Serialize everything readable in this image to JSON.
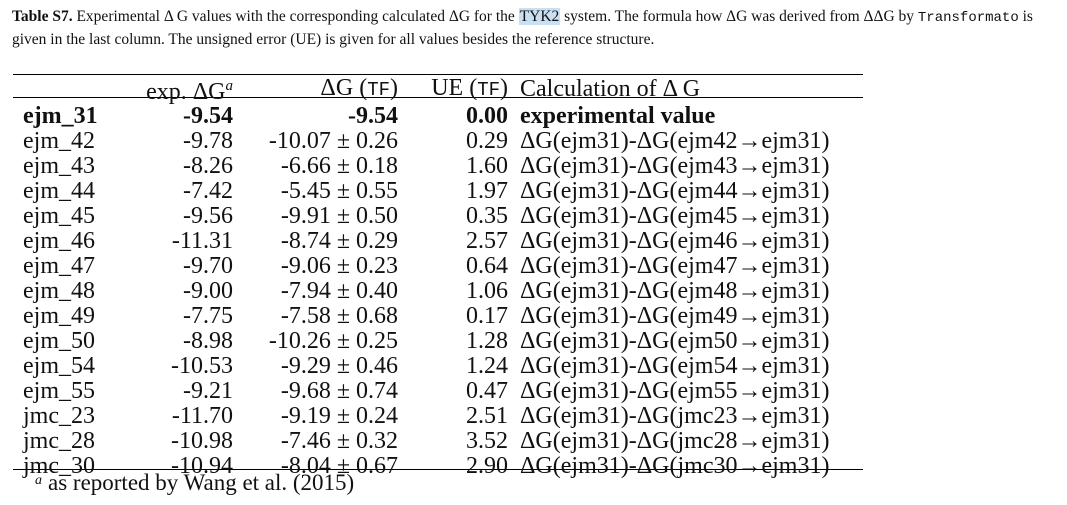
{
  "caption": {
    "label": "Table S7.",
    "text1": "Experimental Δ G values with the corresponding calculated ΔG for the",
    "highlight": "TYK2",
    "text2": "system. The formula how ΔG was derived from ΔΔG by",
    "mono": "Transformato",
    "text3": "is given in the last column. The unsigned error (UE) is given for all values besides the reference structure."
  },
  "table": {
    "headers": {
      "exp": "exp. ΔG",
      "exp_sup": "a",
      "dg": "ΔG (",
      "tf": "TF",
      "dg_close": ")",
      "ue": "UE (",
      "ue_tf": "TF",
      "ue_close": ")",
      "calc": "Calculation of Δ G"
    },
    "rows": [
      {
        "name": "ejm_31",
        "exp": "-9.54",
        "dg": "-9.54",
        "ue": "0.00",
        "calc": "experimental value"
      },
      {
        "name": "ejm_42",
        "exp": "-9.78",
        "dg": "-10.07 ± 0.26",
        "ue": "0.29",
        "calc": "ΔG(ejm31)-ΔG(ejm42→ejm31)"
      },
      {
        "name": "ejm_43",
        "exp": "-8.26",
        "dg": "-6.66 ± 0.18",
        "ue": "1.60",
        "calc": "ΔG(ejm31)-ΔG(ejm43→ejm31)"
      },
      {
        "name": "ejm_44",
        "exp": "-7.42",
        "dg": "-5.45 ± 0.55",
        "ue": "1.97",
        "calc": "ΔG(ejm31)-ΔG(ejm44→ejm31)"
      },
      {
        "name": "ejm_45",
        "exp": "-9.56",
        "dg": "-9.91 ± 0.50",
        "ue": "0.35",
        "calc": "ΔG(ejm31)-ΔG(ejm45→ejm31)"
      },
      {
        "name": "ejm_46",
        "exp": "-11.31",
        "dg": "-8.74 ± 0.29",
        "ue": "2.57",
        "calc": "ΔG(ejm31)-ΔG(ejm46→ejm31)"
      },
      {
        "name": "ejm_47",
        "exp": "-9.70",
        "dg": "-9.06 ± 0.23",
        "ue": "0.64",
        "calc": "ΔG(ejm31)-ΔG(ejm47→ejm31)"
      },
      {
        "name": "ejm_48",
        "exp": "-9.00",
        "dg": "-7.94 ± 0.40",
        "ue": "1.06",
        "calc": "ΔG(ejm31)-ΔG(ejm48→ejm31)"
      },
      {
        "name": "ejm_49",
        "exp": "-7.75",
        "dg": "-7.58 ± 0.68",
        "ue": "0.17",
        "calc": "ΔG(ejm31)-ΔG(ejm49→ejm31)"
      },
      {
        "name": "ejm_50",
        "exp": "-8.98",
        "dg": "-10.26 ± 0.25",
        "ue": "1.28",
        "calc": "ΔG(ejm31)-ΔG(ejm50→ejm31)"
      },
      {
        "name": "ejm_54",
        "exp": "-10.53",
        "dg": "-9.29 ± 0.46",
        "ue": "1.24",
        "calc": "ΔG(ejm31)-ΔG(ejm54→ejm31)"
      },
      {
        "name": "ejm_55",
        "exp": "-9.21",
        "dg": "-9.68 ± 0.74",
        "ue": "0.47",
        "calc": "ΔG(ejm31)-ΔG(ejm55→ejm31)"
      },
      {
        "name": "jmc_23",
        "exp": "-11.70",
        "dg": "-9.19 ± 0.24",
        "ue": "2.51",
        "calc": "ΔG(ejm31)-ΔG(jmc23→ejm31)"
      },
      {
        "name": "jmc_28",
        "exp": "-10.98",
        "dg": "-7.46 ± 0.32",
        "ue": "3.52",
        "calc": "ΔG(ejm31)-ΔG(jmc28→ejm31)"
      },
      {
        "name": "jmc_30",
        "exp": "-10.94",
        "dg": "-8.04 ± 0.67",
        "ue": "2.90",
        "calc": "ΔG(ejm31)-ΔG(jmc30→ejm31)"
      }
    ],
    "footnote_mark": "a",
    "footnote": "as reported by Wang et al. (2015)"
  }
}
